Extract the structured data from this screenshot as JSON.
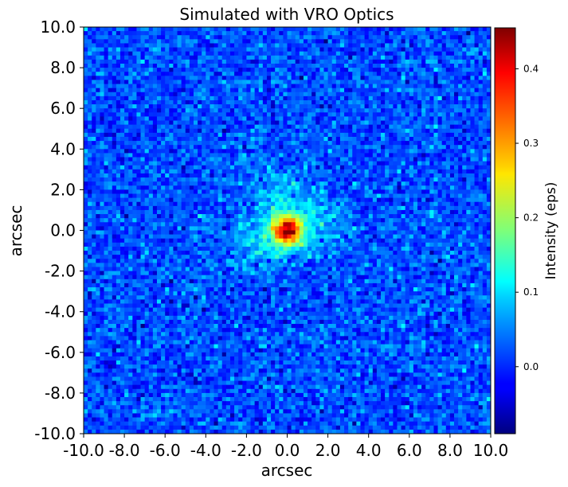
{
  "chart_data": {
    "type": "heatmap",
    "title": "Simulated with VRO Optics",
    "xlabel": "arcsec",
    "ylabel": "arcsec",
    "xlim": [
      -10.0,
      10.0
    ],
    "ylim": [
      -10.0,
      10.0
    ],
    "x_ticks": [
      "-10.0",
      "-8.0",
      "-6.0",
      "-4.0",
      "-2.0",
      "0.0",
      "2.0",
      "4.0",
      "6.0",
      "8.0",
      "10.0"
    ],
    "y_ticks": [
      "-10.0",
      "-8.0",
      "-6.0",
      "-4.0",
      "-2.0",
      "0.0",
      "2.0",
      "4.0",
      "6.0",
      "8.0",
      "10.0"
    ],
    "grid": false,
    "colormap": "jet",
    "colorbar": {
      "label": "Intensity (eps)",
      "range": [
        -0.09,
        0.455
      ],
      "ticks": [
        "0.0",
        "0.1",
        "0.2",
        "0.3",
        "0.4"
      ]
    },
    "pixel_grid": [
      100,
      100
    ],
    "source": {
      "center_arcsec": [
        0.0,
        0.0
      ],
      "peak_intensity": 0.45,
      "background_intensity": 0.02,
      "noise_sigma": 0.03
    }
  }
}
